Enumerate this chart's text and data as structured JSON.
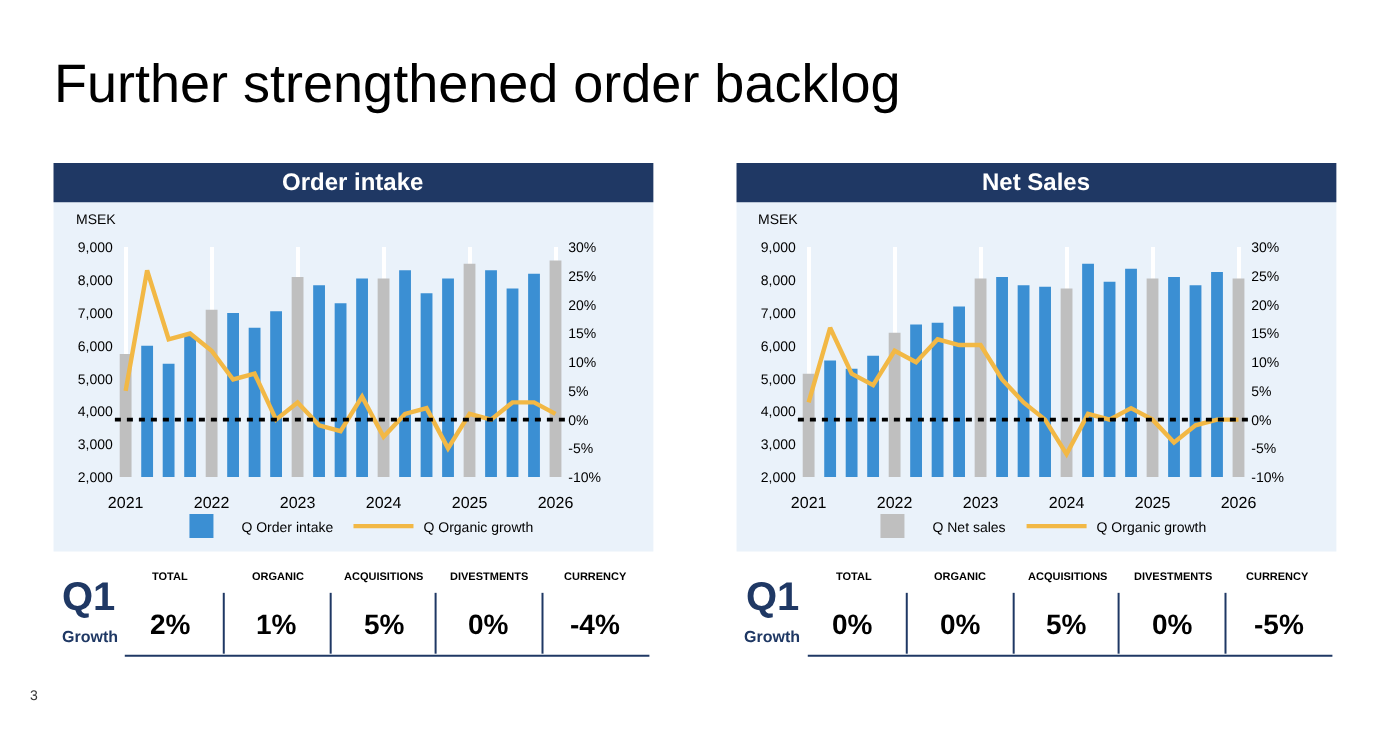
{
  "chart_data": [
    {
      "type": "other",
      "title": "Further strengthened order backlog",
      "annotations": [
        "3"
      ]
    },
    {
      "type": "bar",
      "title": "Order intake",
      "ylabel": "MSEK",
      "categories": [
        "2021",
        null,
        null,
        null,
        "2022",
        null,
        null,
        null,
        "2023",
        null,
        null,
        null,
        "2024",
        null,
        null,
        null,
        "2025",
        null,
        null,
        null,
        "2026"
      ],
      "series": [
        {
          "name": "Q Order intake",
          "type": "bar",
          "color": "#3b8fd3",
          "colors": [
            "#bfbfbf",
            "#3b8fd3",
            "#3b8fd3",
            "#3b8fd3",
            "#bfbfbf",
            "#3b8fd3",
            "#3b8fd3",
            "#3b8fd3",
            "#bfbfbf",
            "#3b8fd3",
            "#3b8fd3",
            "#3b8fd3",
            "#bfbfbf",
            "#3b8fd3",
            "#3b8fd3",
            "#3b8fd3",
            "#bfbfbf",
            "#3b8fd3",
            "#3b8fd3",
            "#3b8fd3",
            "#bfbfbf"
          ],
          "values": [
            5750,
            6000,
            5450,
            6300,
            7100,
            7000,
            6550,
            7050,
            8100,
            7850,
            7300,
            8050,
            8050,
            8300,
            7600,
            8050,
            8500,
            8300,
            7750,
            8200,
            8600
          ]
        },
        {
          "name": "Q Organic growth",
          "type": "line",
          "axis": "y2",
          "color": "#f2b845",
          "values": [
            5,
            26,
            14,
            15,
            12,
            7,
            8,
            0,
            3,
            -1,
            -2,
            4,
            -3,
            1,
            2,
            -5,
            1,
            0,
            3,
            3,
            1
          ]
        }
      ],
      "ylim": [
        2000,
        9000
      ],
      "yticks": [
        {
          "value": 2000,
          "label": "2,000"
        },
        {
          "value": 3000,
          "label": "3,000"
        },
        {
          "value": 4000,
          "label": "4,000"
        },
        {
          "value": 5000,
          "label": "5,000"
        },
        {
          "value": 6000,
          "label": "6,000"
        },
        {
          "value": 7000,
          "label": "7,000"
        },
        {
          "value": 8000,
          "label": "8,000"
        },
        {
          "value": 9000,
          "label": "9,000"
        }
      ],
      "y2lim": [
        -10,
        30
      ],
      "y2ticks": [
        {
          "value": -10,
          "label": "-10%"
        },
        {
          "value": -5,
          "label": "-5%"
        },
        {
          "value": 0,
          "label": "0%"
        },
        {
          "value": 5,
          "label": "5%"
        },
        {
          "value": 10,
          "label": "10%"
        },
        {
          "value": 15,
          "label": "15%"
        },
        {
          "value": 20,
          "label": "20%"
        },
        {
          "value": 25,
          "label": "25%"
        },
        {
          "value": 30,
          "label": "30%"
        }
      ],
      "ref_lines": [
        {
          "axis": "y2",
          "value": 0,
          "label": null,
          "color": "#000000",
          "line_style": "dotted"
        }
      ],
      "grid": "x",
      "legend": "bottom",
      "marker": "none",
      "line_style": "solid",
      "annotations": [
        "Q1",
        "Growth",
        "TOTAL",
        "2%",
        "ORGANIC",
        "1%",
        "ACQUISITIONS",
        "5%",
        "DIVESTMENTS",
        "0%",
        "CURRENCY",
        "-4%"
      ]
    },
    {
      "type": "bar",
      "title": "Net Sales",
      "ylabel": "MSEK",
      "categories": [
        "2021",
        null,
        null,
        null,
        "2022",
        null,
        null,
        null,
        "2023",
        null,
        null,
        null,
        "2024",
        null,
        null,
        null,
        "2025",
        null,
        null,
        null,
        "2026"
      ],
      "series": [
        {
          "name": "Q Net sales",
          "type": "bar",
          "color": "#3b8fd3",
          "colors": [
            "#bfbfbf",
            "#3b8fd3",
            "#3b8fd3",
            "#3b8fd3",
            "#bfbfbf",
            "#3b8fd3",
            "#3b8fd3",
            "#3b8fd3",
            "#bfbfbf",
            "#3b8fd3",
            "#3b8fd3",
            "#3b8fd3",
            "#bfbfbf",
            "#3b8fd3",
            "#3b8fd3",
            "#3b8fd3",
            "#bfbfbf",
            "#3b8fd3",
            "#3b8fd3",
            "#3b8fd3",
            "#bfbfbf"
          ],
          "values": [
            5150,
            5550,
            5300,
            5700,
            6400,
            6650,
            6700,
            7200,
            8050,
            8100,
            7850,
            7800,
            7750,
            8500,
            7950,
            8350,
            8050,
            8100,
            7850,
            8250,
            8050
          ]
        },
        {
          "name": "Q Organic growth",
          "type": "line",
          "axis": "y2",
          "color": "#f2b845",
          "values": [
            3,
            16,
            8,
            6,
            12,
            10,
            14,
            13,
            13,
            7,
            3,
            0,
            -6,
            1,
            0,
            2,
            0,
            -4,
            -1,
            0,
            0
          ]
        }
      ],
      "ylim": [
        2000,
        9000
      ],
      "yticks": [
        {
          "value": 2000,
          "label": "2,000"
        },
        {
          "value": 3000,
          "label": "3,000"
        },
        {
          "value": 4000,
          "label": "4,000"
        },
        {
          "value": 5000,
          "label": "5,000"
        },
        {
          "value": 6000,
          "label": "6,000"
        },
        {
          "value": 7000,
          "label": "7,000"
        },
        {
          "value": 8000,
          "label": "8,000"
        },
        {
          "value": 9000,
          "label": "9,000"
        }
      ],
      "y2lim": [
        -10,
        30
      ],
      "y2ticks": [
        {
          "value": -10,
          "label": "-10%"
        },
        {
          "value": -5,
          "label": "-5%"
        },
        {
          "value": 0,
          "label": "0%"
        },
        {
          "value": 5,
          "label": "5%"
        },
        {
          "value": 10,
          "label": "10%"
        },
        {
          "value": 15,
          "label": "15%"
        },
        {
          "value": 20,
          "label": "20%"
        },
        {
          "value": 25,
          "label": "25%"
        },
        {
          "value": 30,
          "label": "30%"
        }
      ],
      "ref_lines": [
        {
          "axis": "y2",
          "value": 0,
          "label": null,
          "color": "#000000",
          "line_style": "dotted"
        }
      ],
      "grid": "x",
      "legend": "bottom",
      "marker": "none",
      "line_style": "solid",
      "annotations": [
        "Q1",
        "Growth",
        "TOTAL",
        "0%",
        "ORGANIC",
        "0%",
        "ACQUISITIONS",
        "5%",
        "DIVESTMENTS",
        "0%",
        "CURRENCY",
        "-5%"
      ]
    }
  ]
}
